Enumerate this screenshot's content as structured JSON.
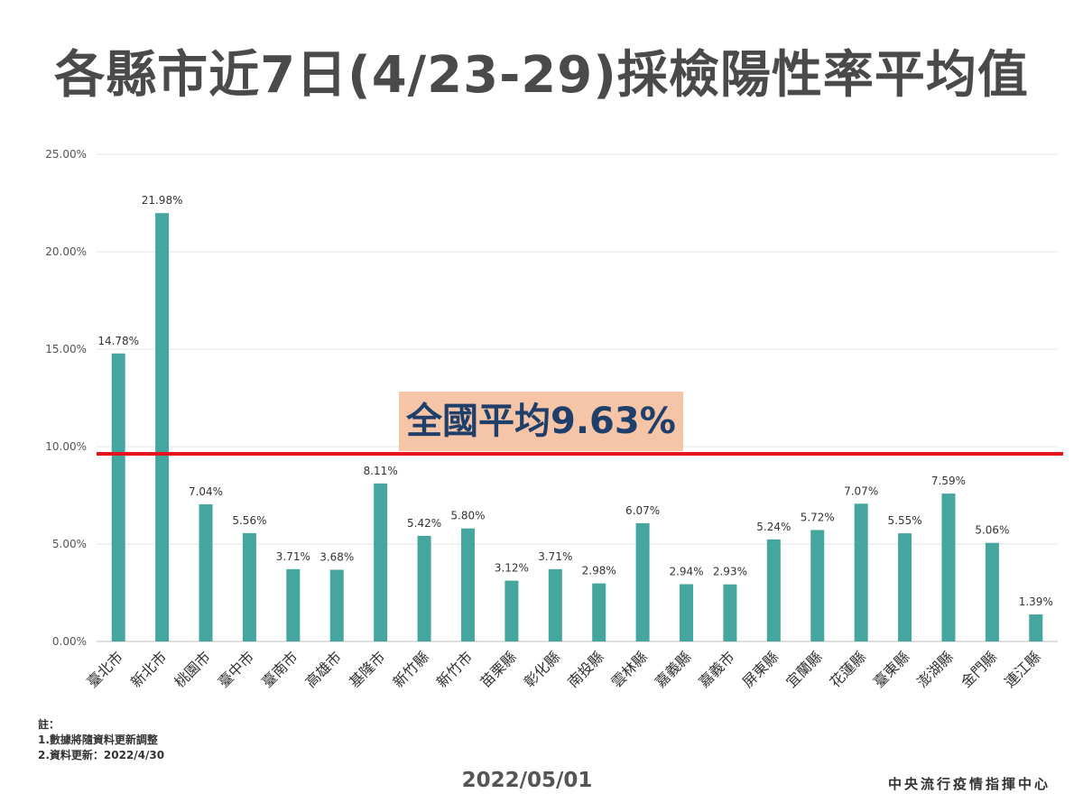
{
  "title": "各縣市近7日(4/23-29)採檢陽性率平均值",
  "chart_data": {
    "type": "bar",
    "categories": [
      "臺北市",
      "新北市",
      "桃園市",
      "臺中市",
      "臺南市",
      "高雄市",
      "基隆市",
      "新竹縣",
      "新竹市",
      "苗栗縣",
      "彰化縣",
      "南投縣",
      "雲林縣",
      "嘉義縣",
      "嘉義市",
      "屏東縣",
      "宜蘭縣",
      "花蓮縣",
      "臺東縣",
      "澎湖縣",
      "金門縣",
      "連江縣"
    ],
    "values": [
      14.78,
      21.98,
      7.04,
      5.56,
      3.71,
      3.68,
      8.11,
      5.42,
      5.8,
      3.12,
      3.71,
      2.98,
      6.07,
      2.94,
      2.93,
      5.24,
      5.72,
      7.07,
      5.55,
      7.59,
      5.06,
      1.39
    ],
    "value_labels": [
      "14.78%",
      "21.98%",
      "7.04%",
      "5.56%",
      "3.71%",
      "3.68%",
      "8.11%",
      "5.42%",
      "5.80%",
      "3.12%",
      "3.71%",
      "2.98%",
      "6.07%",
      "2.94%",
      "2.93%",
      "5.24%",
      "5.72%",
      "7.07%",
      "5.55%",
      "7.59%",
      "5.06%",
      "1.39%"
    ],
    "ylim": [
      0,
      25
    ],
    "yticks": [
      "0.00%",
      "5.00%",
      "10.00%",
      "15.00%",
      "20.00%",
      "25.00%"
    ],
    "grid": true,
    "bar_color": "#44a69e",
    "reference_line": {
      "value": 9.63,
      "label": "全國平均9.63%",
      "color": "#e8141c"
    }
  },
  "notes": {
    "heading": "註：",
    "lines": [
      "1.數據將隨資料更新調整",
      "2.資料更新：2022/4/30"
    ]
  },
  "footer": {
    "date": "2022/05/01",
    "org": "中央流行疫情指揮中心"
  },
  "colors": {
    "label_background": "#f6c4a6",
    "label_text": "#1f3f6b"
  }
}
